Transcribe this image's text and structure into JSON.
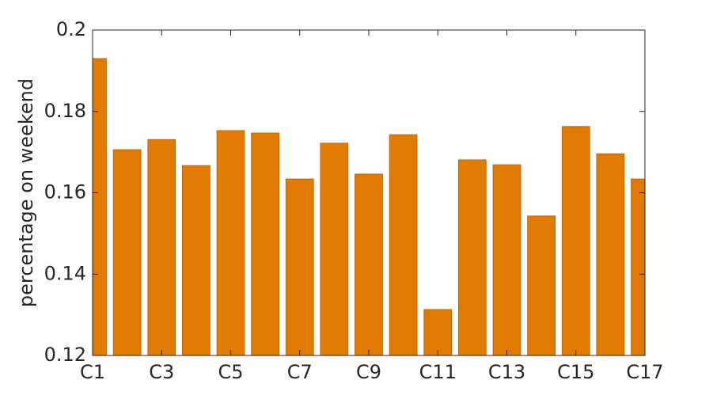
{
  "chart_data": {
    "type": "bar",
    "ylabel": "percentage on weekend",
    "categories": [
      "C1",
      null,
      "C3",
      null,
      "C5",
      null,
      "C7",
      null,
      "C9",
      null,
      "C11",
      null,
      "C13",
      null,
      "C15",
      null,
      "C17"
    ],
    "values": [
      0.193,
      0.1706,
      0.1731,
      0.1667,
      0.1753,
      0.1747,
      0.1634,
      0.1722,
      0.1646,
      0.1743,
      0.1313,
      0.1681,
      0.1669,
      0.1543,
      0.1763,
      0.1696,
      0.1634
    ],
    "color": "#e07b00",
    "ylim": [
      0.12,
      0.2
    ],
    "yticks": [
      0.12,
      0.14,
      0.16,
      0.18,
      0.2
    ],
    "grid": false
  }
}
